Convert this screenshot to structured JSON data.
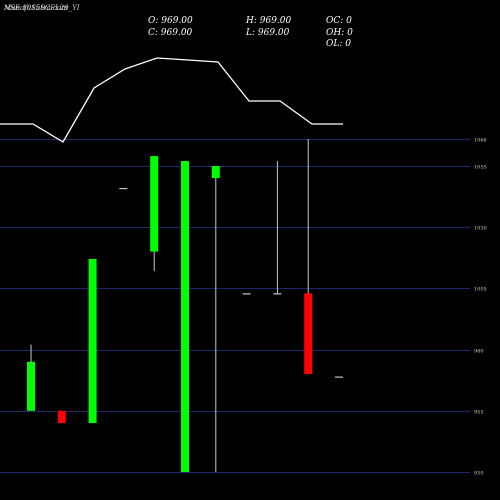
{
  "title_lines": [
    "MunafaSutra.com",
    "NSE 1015SCFL29_YI"
  ],
  "ohlc": {
    "open": "O: 969.00",
    "high": "H: 969.00",
    "close": "C: 969.00",
    "low": "L: 969.00",
    "oc": "OC: 0",
    "oh": "OH: 0",
    "ol": "OL: 0"
  },
  "colors": {
    "background": "#000000",
    "up": "#00ff00",
    "down": "#ff0000",
    "grid": "#1c2b66",
    "wick": "#c8c8c8",
    "line": "#ffffff"
  },
  "chart_data": {
    "type": "candlestick",
    "y_ticks": [
      930,
      955,
      980,
      1005,
      1030,
      1055,
      1066
    ],
    "y_tick_labels": [
      "930",
      "955",
      "980",
      "1005",
      "1030",
      "1055",
      "1066"
    ],
    "ylim": [
      930,
      1066
    ],
    "grid": true,
    "candles": [
      {
        "open": 955,
        "high": 982,
        "low": 955,
        "close": 975
      },
      {
        "open": 955,
        "high": 955,
        "low": 950,
        "close": 950
      },
      {
        "open": 950,
        "high": 1017,
        "low": 950,
        "close": 1017
      },
      {
        "open": 1046,
        "high": 1046,
        "low": 1046,
        "close": 1046
      },
      {
        "open": 1020,
        "high": 1059,
        "low": 1012,
        "close": 1059
      },
      {
        "open": 930,
        "high": 1057,
        "low": 930,
        "close": 1057
      },
      {
        "open": 1050,
        "high": 1055,
        "low": 930,
        "close": 1055
      },
      {
        "open": 1003,
        "high": 1003,
        "low": 1003,
        "close": 1003
      },
      {
        "open": 1003,
        "high": 1057,
        "low": 1003,
        "close": 1003
      },
      {
        "open": 1003,
        "high": 1066,
        "low": 970,
        "close": 970
      },
      {
        "open": 969,
        "high": 969,
        "low": 969,
        "close": 969
      }
    ],
    "overlay_line": [
      124,
      124,
      142,
      88,
      69,
      58,
      60,
      62,
      101,
      101,
      124,
      124
    ]
  }
}
